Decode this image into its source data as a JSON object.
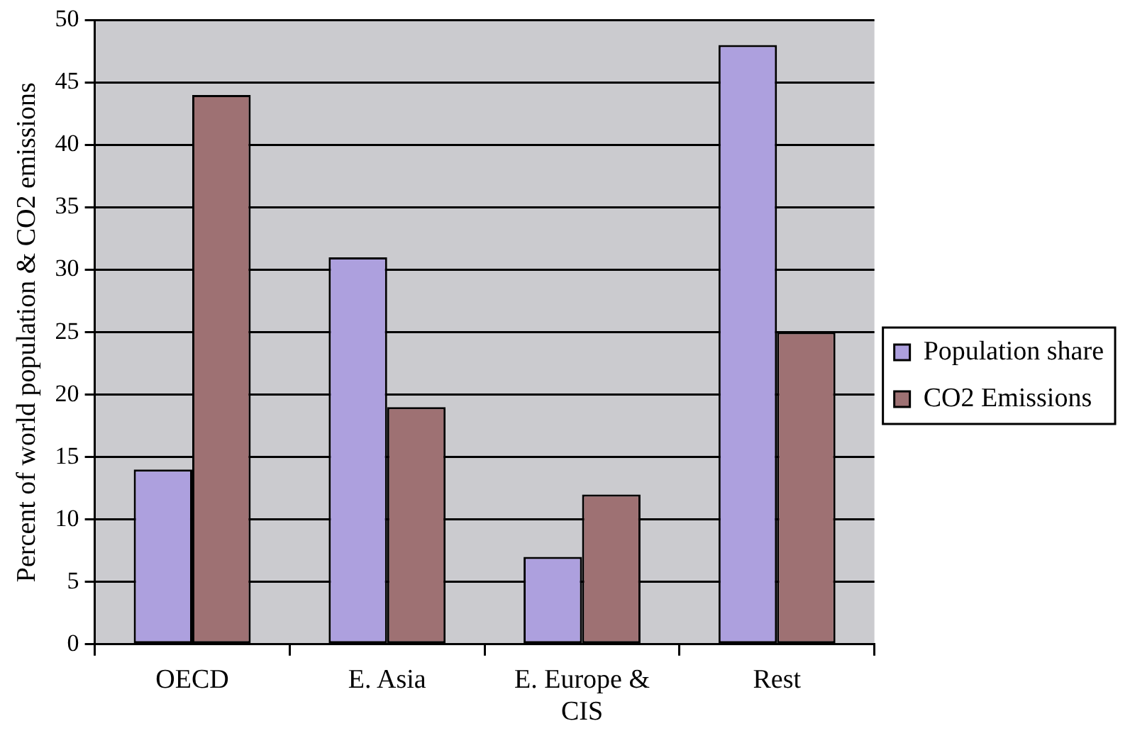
{
  "chart_data": {
    "type": "bar",
    "ylabel": "Percent of world population & CO2 emissions",
    "categories": [
      "OECD",
      "E. Asia",
      "E. Europe & CIS",
      "Rest"
    ],
    "series": [
      {
        "name": "Population share",
        "color": "#ada0de",
        "values": [
          14,
          31,
          7,
          48
        ]
      },
      {
        "name": "CO2 Emissions",
        "color": "#9e7173",
        "values": [
          44,
          19,
          12,
          25
        ]
      }
    ],
    "ylim": [
      0,
      50
    ],
    "yticks": [
      0,
      5,
      10,
      15,
      20,
      25,
      30,
      35,
      40,
      45,
      50
    ],
    "grid": "y",
    "legend": "right"
  }
}
